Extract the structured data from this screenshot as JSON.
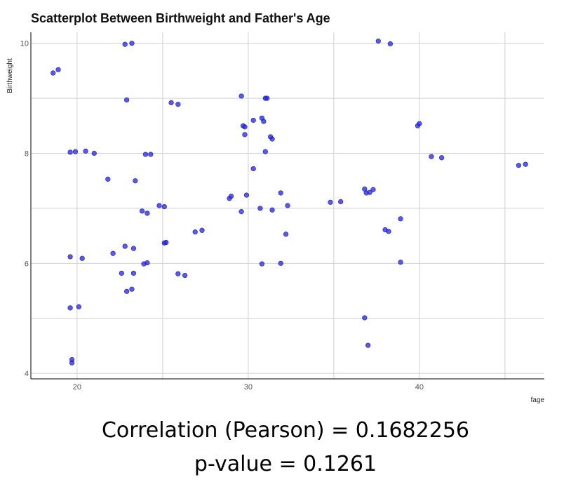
{
  "caption": {
    "correlation": "Correlation (Pearson) = 0.1682256",
    "pvalue": "p-value = 0.1261"
  },
  "colors": {
    "point": "#2222ee",
    "grid": "#d0d0d0",
    "axis": "#000000",
    "tick_text": "#555555"
  },
  "chart_data": {
    "type": "scatter",
    "title": "Scatterplot Between Birthweight and Father's Age",
    "xlabel": "fage",
    "ylabel": "Birthweight",
    "xlim": [
      17.3,
      47.3
    ],
    "ylim": [
      3.9,
      10.2
    ],
    "xticks": [
      20,
      30,
      40
    ],
    "yticks": [
      4,
      6,
      8,
      10
    ],
    "grid": true,
    "legend": "none",
    "points": [
      [
        18.6,
        9.46
      ],
      [
        18.9,
        9.52
      ],
      [
        19.6,
        8.02
      ],
      [
        19.9,
        8.03
      ],
      [
        20.5,
        8.04
      ],
      [
        21.0,
        8.0
      ],
      [
        19.6,
        6.12
      ],
      [
        20.3,
        6.09
      ],
      [
        19.6,
        5.19
      ],
      [
        20.1,
        5.21
      ],
      [
        19.7,
        4.25
      ],
      [
        19.7,
        4.19
      ],
      [
        21.8,
        7.53
      ],
      [
        22.1,
        6.18
      ],
      [
        22.6,
        5.82
      ],
      [
        22.8,
        6.31
      ],
      [
        22.9,
        5.49
      ],
      [
        23.2,
        5.53
      ],
      [
        23.3,
        5.82
      ],
      [
        23.3,
        6.27
      ],
      [
        22.8,
        9.98
      ],
      [
        23.2,
        10.0
      ],
      [
        22.9,
        8.97
      ],
      [
        23.4,
        7.5
      ],
      [
        23.8,
        6.95
      ],
      [
        24.0,
        7.98
      ],
      [
        24.3,
        7.98
      ],
      [
        24.1,
        6.91
      ],
      [
        23.9,
        5.99
      ],
      [
        24.1,
        6.01
      ],
      [
        24.8,
        7.05
      ],
      [
        25.1,
        7.03
      ],
      [
        25.1,
        6.37
      ],
      [
        25.2,
        6.38
      ],
      [
        25.5,
        8.92
      ],
      [
        25.9,
        8.89
      ],
      [
        25.9,
        5.81
      ],
      [
        26.3,
        5.78
      ],
      [
        26.9,
        6.57
      ],
      [
        27.3,
        6.6
      ],
      [
        28.9,
        7.18
      ],
      [
        29.0,
        7.22
      ],
      [
        29.6,
        9.04
      ],
      [
        29.7,
        8.5
      ],
      [
        29.8,
        8.48
      ],
      [
        29.8,
        8.34
      ],
      [
        29.6,
        6.94
      ],
      [
        29.9,
        7.24
      ],
      [
        30.3,
        7.72
      ],
      [
        30.3,
        8.6
      ],
      [
        30.8,
        8.64
      ],
      [
        30.9,
        8.58
      ],
      [
        31.0,
        9.0
      ],
      [
        31.1,
        9.0
      ],
      [
        30.7,
        7.0
      ],
      [
        31.0,
        8.03
      ],
      [
        31.3,
        8.3
      ],
      [
        31.4,
        8.26
      ],
      [
        31.4,
        6.97
      ],
      [
        30.8,
        5.99
      ],
      [
        31.9,
        7.28
      ],
      [
        31.9,
        6.0
      ],
      [
        32.2,
        6.53
      ],
      [
        32.3,
        7.05
      ],
      [
        34.8,
        7.11
      ],
      [
        35.4,
        7.12
      ],
      [
        36.8,
        7.35
      ],
      [
        36.9,
        7.28
      ],
      [
        37.1,
        7.29
      ],
      [
        37.3,
        7.34
      ],
      [
        36.8,
        5.01
      ],
      [
        37.0,
        4.51
      ],
      [
        37.6,
        10.04
      ],
      [
        38.3,
        9.99
      ],
      [
        38.0,
        6.61
      ],
      [
        38.2,
        6.58
      ],
      [
        38.9,
        6.81
      ],
      [
        38.9,
        6.02
      ],
      [
        39.9,
        8.5
      ],
      [
        40.0,
        8.54
      ],
      [
        40.7,
        7.94
      ],
      [
        41.3,
        7.92
      ],
      [
        45.8,
        7.78
      ],
      [
        46.2,
        7.8
      ]
    ]
  }
}
